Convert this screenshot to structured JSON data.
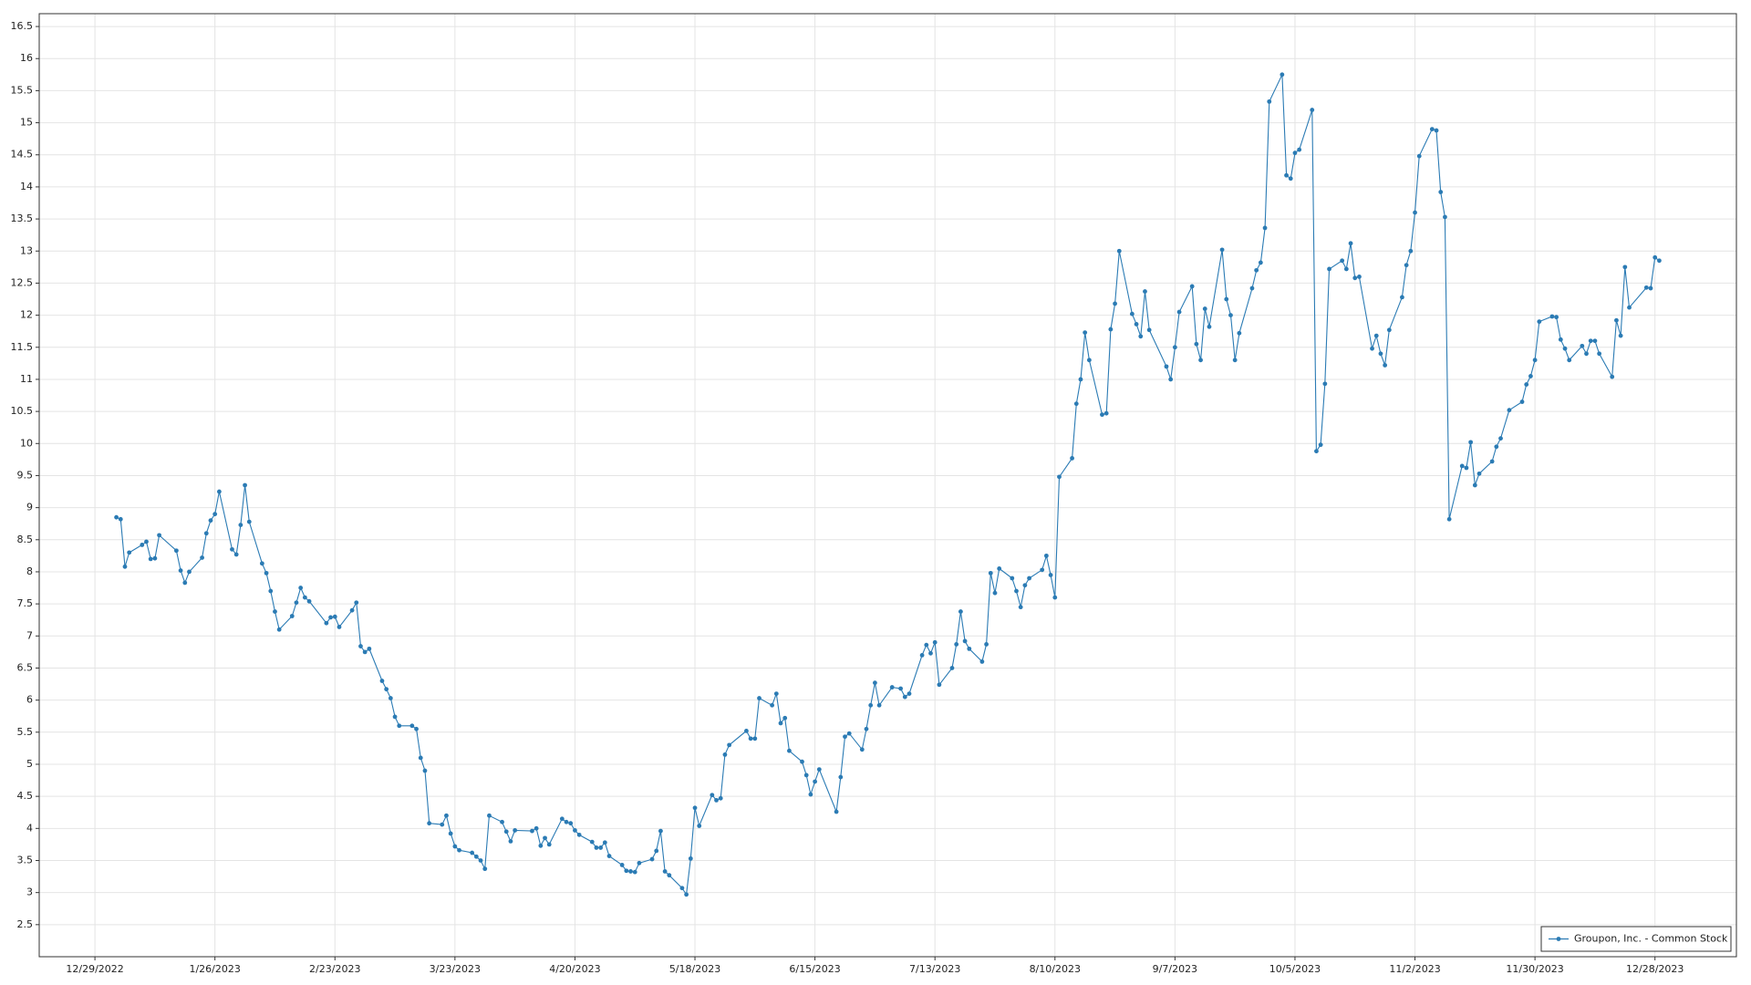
{
  "chart_data": {
    "type": "line",
    "x": [
      "1/3/2023",
      "1/4/2023",
      "1/5/2023",
      "1/6/2023",
      "1/9/2023",
      "1/10/2023",
      "1/11/2023",
      "1/12/2023",
      "1/13/2023",
      "1/17/2023",
      "1/18/2023",
      "1/19/2023",
      "1/20/2023",
      "1/23/2023",
      "1/24/2023",
      "1/25/2023",
      "1/26/2023",
      "1/27/2023",
      "1/30/2023",
      "1/31/2023",
      "2/1/2023",
      "2/2/2023",
      "2/3/2023",
      "2/6/2023",
      "2/7/2023",
      "2/8/2023",
      "2/9/2023",
      "2/10/2023",
      "2/13/2023",
      "2/14/2023",
      "2/15/2023",
      "2/16/2023",
      "2/17/2023",
      "2/21/2023",
      "2/22/2023",
      "2/23/2023",
      "2/24/2023",
      "2/27/2023",
      "2/28/2023",
      "3/1/2023",
      "3/2/2023",
      "3/3/2023",
      "3/6/2023",
      "3/7/2023",
      "3/8/2023",
      "3/9/2023",
      "3/10/2023",
      "3/13/2023",
      "3/14/2023",
      "3/15/2023",
      "3/16/2023",
      "3/17/2023",
      "3/20/2023",
      "3/21/2023",
      "3/22/2023",
      "3/23/2023",
      "3/24/2023",
      "3/27/2023",
      "3/28/2023",
      "3/29/2023",
      "3/30/2023",
      "3/31/2023",
      "4/3/2023",
      "4/4/2023",
      "4/5/2023",
      "4/6/2023",
      "4/10/2023",
      "4/11/2023",
      "4/12/2023",
      "4/13/2023",
      "4/14/2023",
      "4/17/2023",
      "4/18/2023",
      "4/19/2023",
      "4/20/2023",
      "4/21/2023",
      "4/24/2023",
      "4/25/2023",
      "4/26/2023",
      "4/27/2023",
      "4/28/2023",
      "5/1/2023",
      "5/2/2023",
      "5/3/2023",
      "5/4/2023",
      "5/5/2023",
      "5/8/2023",
      "5/9/2023",
      "5/10/2023",
      "5/11/2023",
      "5/12/2023",
      "5/15/2023",
      "5/16/2023",
      "5/17/2023",
      "5/18/2023",
      "5/19/2023",
      "5/22/2023",
      "5/23/2023",
      "5/24/2023",
      "5/25/2023",
      "5/26/2023",
      "5/30/2023",
      "5/31/2023",
      "6/1/2023",
      "6/2/2023",
      "6/5/2023",
      "6/6/2023",
      "6/7/2023",
      "6/8/2023",
      "6/9/2023",
      "6/12/2023",
      "6/13/2023",
      "6/14/2023",
      "6/15/2023",
      "6/16/2023",
      "6/20/2023",
      "6/21/2023",
      "6/22/2023",
      "6/23/2023",
      "6/26/2023",
      "6/27/2023",
      "6/28/2023",
      "6/29/2023",
      "6/30/2023",
      "7/3/2023",
      "7/5/2023",
      "7/6/2023",
      "7/7/2023",
      "7/10/2023",
      "7/11/2023",
      "7/12/2023",
      "7/13/2023",
      "7/14/2023",
      "7/17/2023",
      "7/18/2023",
      "7/19/2023",
      "7/20/2023",
      "7/21/2023",
      "7/24/2023",
      "7/25/2023",
      "7/26/2023",
      "7/27/2023",
      "7/28/2023",
      "7/31/2023",
      "8/1/2023",
      "8/2/2023",
      "8/3/2023",
      "8/4/2023",
      "8/7/2023",
      "8/8/2023",
      "8/9/2023",
      "8/10/2023",
      "8/11/2023",
      "8/14/2023",
      "8/15/2023",
      "8/16/2023",
      "8/17/2023",
      "8/18/2023",
      "8/21/2023",
      "8/22/2023",
      "8/23/2023",
      "8/24/2023",
      "8/25/2023",
      "8/28/2023",
      "8/29/2023",
      "8/30/2023",
      "8/31/2023",
      "9/1/2023",
      "9/5/2023",
      "9/6/2023",
      "9/7/2023",
      "9/8/2023",
      "9/11/2023",
      "9/12/2023",
      "9/13/2023",
      "9/14/2023",
      "9/15/2023",
      "9/18/2023",
      "9/19/2023",
      "9/20/2023",
      "9/21/2023",
      "9/22/2023",
      "9/25/2023",
      "9/26/2023",
      "9/27/2023",
      "9/28/2023",
      "9/29/2023",
      "10/2/2023",
      "10/3/2023",
      "10/4/2023",
      "10/5/2023",
      "10/6/2023",
      "10/9/2023",
      "10/10/2023",
      "10/11/2023",
      "10/12/2023",
      "10/13/2023",
      "10/16/2023",
      "10/17/2023",
      "10/18/2023",
      "10/19/2023",
      "10/20/2023",
      "10/23/2023",
      "10/24/2023",
      "10/25/2023",
      "10/26/2023",
      "10/27/2023",
      "10/30/2023",
      "10/31/2023",
      "11/1/2023",
      "11/2/2023",
      "11/3/2023",
      "11/6/2023",
      "11/7/2023",
      "11/8/2023",
      "11/9/2023",
      "11/10/2023",
      "11/13/2023",
      "11/14/2023",
      "11/15/2023",
      "11/16/2023",
      "11/17/2023",
      "11/20/2023",
      "11/21/2023",
      "11/22/2023",
      "11/24/2023",
      "11/27/2023",
      "11/28/2023",
      "11/29/2023",
      "11/30/2023",
      "12/1/2023",
      "12/4/2023",
      "12/5/2023",
      "12/6/2023",
      "12/7/2023",
      "12/8/2023",
      "12/11/2023",
      "12/12/2023",
      "12/13/2023",
      "12/14/2023",
      "12/15/2023",
      "12/18/2023",
      "12/19/2023",
      "12/20/2023",
      "12/21/2023",
      "12/22/2023",
      "12/26/2023",
      "12/27/2023",
      "12/28/2023",
      "12/29/2023"
    ],
    "series": [
      {
        "name": "Groupon, Inc. - Common Stock",
        "color": "#2b7bb4",
        "values": [
          8.85,
          8.82,
          8.08,
          8.3,
          8.42,
          8.47,
          8.2,
          8.21,
          8.57,
          8.33,
          8.02,
          7.83,
          8.0,
          8.22,
          8.6,
          8.8,
          8.9,
          9.25,
          8.35,
          8.27,
          8.73,
          9.35,
          8.78,
          8.13,
          7.98,
          7.7,
          7.38,
          7.1,
          7.31,
          7.52,
          7.75,
          7.6,
          7.54,
          7.2,
          7.29,
          7.3,
          7.14,
          7.4,
          7.52,
          6.84,
          6.75,
          6.8,
          6.3,
          6.17,
          6.03,
          5.74,
          5.6,
          5.6,
          5.55,
          5.1,
          4.9,
          4.08,
          4.06,
          4.2,
          3.92,
          3.72,
          3.66,
          3.62,
          3.56,
          3.5,
          3.37,
          4.2,
          4.1,
          3.95,
          3.8,
          3.97,
          3.96,
          4.0,
          3.73,
          3.85,
          3.75,
          4.15,
          4.1,
          4.08,
          3.97,
          3.9,
          3.79,
          3.7,
          3.7,
          3.78,
          3.57,
          3.43,
          3.34,
          3.33,
          3.32,
          3.46,
          3.52,
          3.65,
          3.96,
          3.33,
          3.27,
          3.07,
          2.97,
          3.53,
          4.32,
          4.04,
          4.52,
          4.44,
          4.47,
          5.15,
          5.3,
          5.52,
          5.4,
          5.4,
          6.03,
          5.92,
          6.1,
          5.64,
          5.72,
          5.21,
          5.04,
          4.83,
          4.53,
          4.73,
          4.92,
          4.26,
          4.8,
          5.43,
          5.48,
          5.23,
          5.55,
          5.92,
          6.27,
          5.92,
          6.2,
          6.18,
          6.05,
          6.1,
          6.7,
          6.86,
          6.73,
          6.9,
          6.24,
          6.5,
          6.87,
          7.38,
          6.92,
          6.8,
          6.6,
          6.87,
          7.98,
          7.67,
          8.05,
          7.9,
          7.7,
          7.45,
          7.79,
          7.9,
          8.03,
          8.25,
          7.95,
          7.6,
          9.48,
          9.77,
          10.62,
          11.0,
          11.73,
          11.3,
          10.45,
          10.47,
          11.78,
          12.18,
          13.0,
          12.02,
          11.86,
          11.67,
          12.37,
          11.77,
          11.2,
          11.0,
          11.5,
          12.05,
          12.45,
          11.55,
          11.3,
          12.1,
          11.82,
          13.02,
          12.25,
          12.0,
          11.3,
          11.72,
          12.42,
          12.7,
          12.82,
          13.36,
          15.33,
          15.75,
          14.18,
          14.13,
          14.53,
          14.58,
          15.2,
          9.88,
          9.98,
          10.93,
          12.72,
          12.85,
          12.72,
          13.12,
          12.58,
          12.6,
          11.48,
          11.68,
          11.4,
          11.22,
          11.77,
          12.28,
          12.78,
          13.0,
          13.6,
          14.48,
          14.9,
          14.88,
          13.92,
          13.53,
          8.82,
          9.65,
          9.62,
          10.02,
          9.35,
          9.53,
          9.72,
          9.95,
          10.08,
          10.52,
          10.65,
          10.92,
          11.05,
          11.3,
          11.9,
          11.98,
          11.97,
          11.62,
          11.48,
          11.3,
          11.52,
          11.4,
          11.6,
          11.6,
          11.4,
          11.04,
          11.92,
          11.68,
          12.75,
          12.12,
          12.43,
          12.42,
          12.9,
          12.85
        ]
      }
    ],
    "xlim": [
      "12/16/2022",
      "1/16/2024"
    ],
    "xticks": [
      "12/29/2022",
      "1/26/2023",
      "2/23/2023",
      "3/23/2023",
      "4/20/2023",
      "5/18/2023",
      "6/15/2023",
      "7/13/2023",
      "8/10/2023",
      "9/7/2023",
      "10/5/2023",
      "11/2/2023",
      "11/30/2023",
      "12/28/2023"
    ],
    "ylim": [
      2,
      16.7
    ],
    "yticks": [
      2.5,
      3,
      3.5,
      4,
      4.5,
      5,
      5.5,
      6,
      6.5,
      7,
      7.5,
      8,
      8.5,
      9,
      9.5,
      10,
      10.5,
      11,
      11.5,
      12,
      12.5,
      13,
      13.5,
      14,
      14.5,
      15,
      15.5,
      16,
      16.5
    ],
    "grid": true,
    "legend": "lower right"
  }
}
